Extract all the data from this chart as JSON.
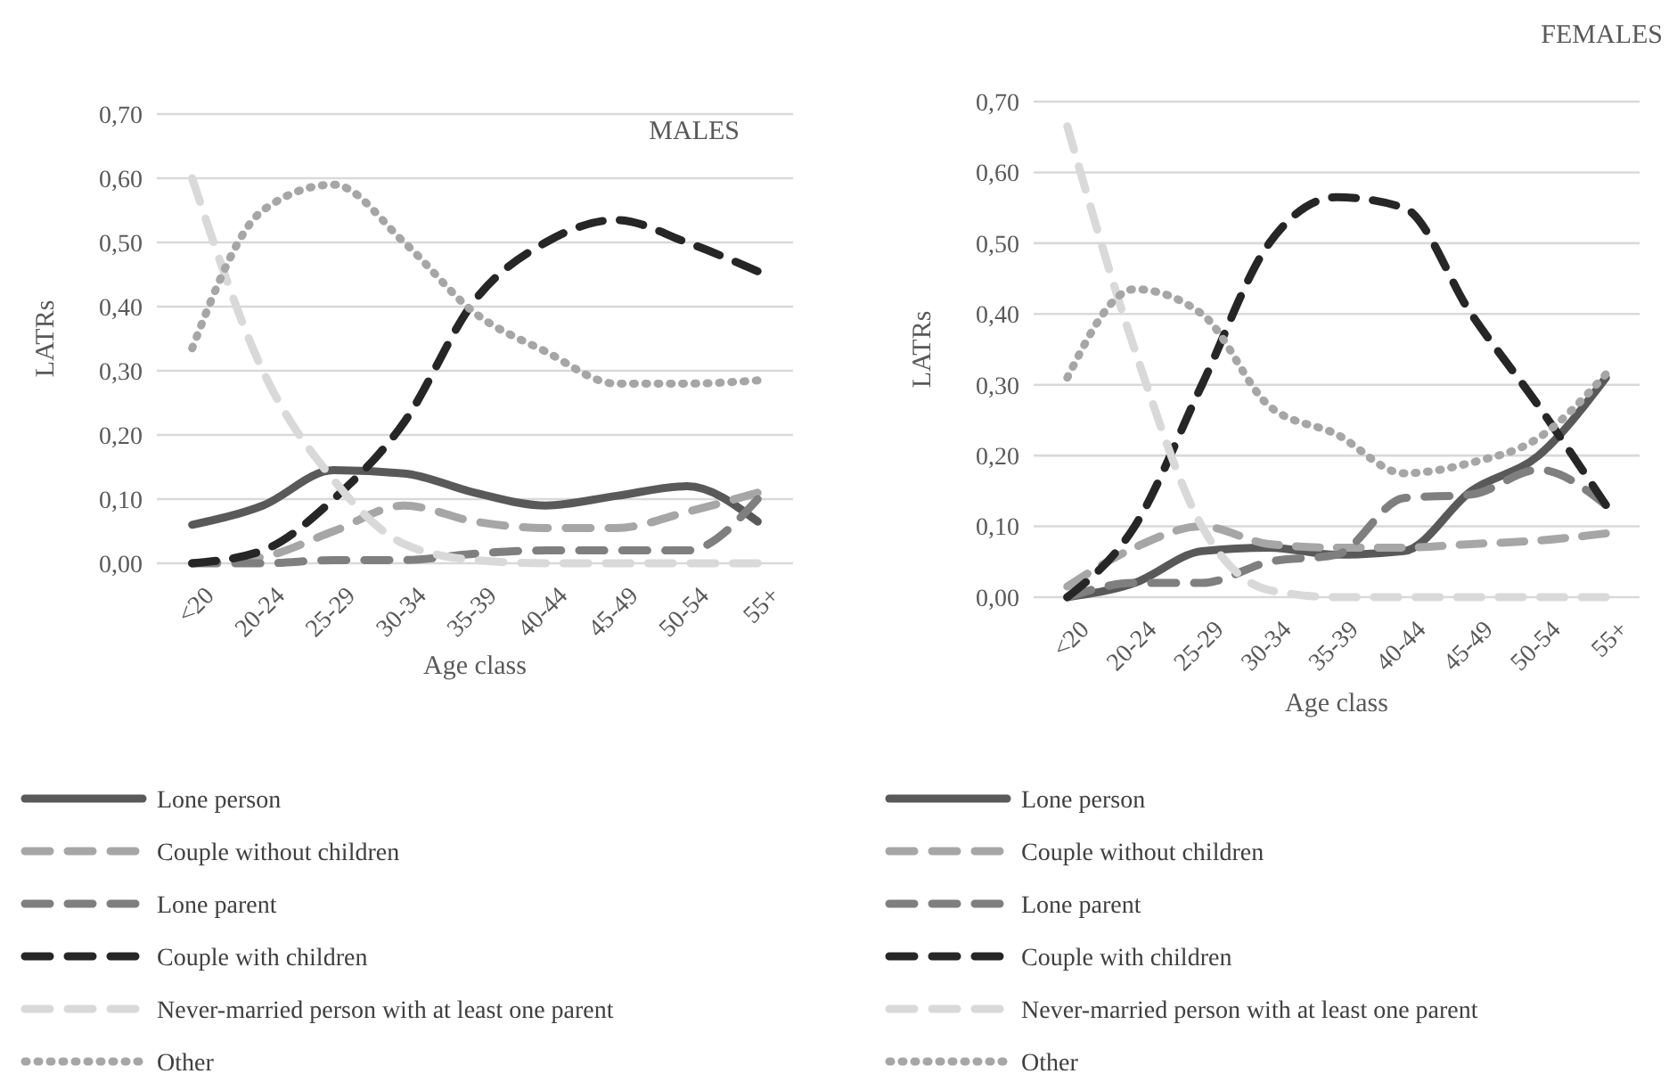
{
  "chart_data": [
    {
      "type": "line",
      "title": "MALES",
      "xlabel": "Age class",
      "ylabel": "LATRs",
      "categories": [
        "<20",
        "20-24",
        "25-29",
        "30-34",
        "35-39",
        "40-44",
        "45-49",
        "50-54",
        "55+"
      ],
      "ylim": [
        0,
        0.7
      ],
      "yticks": [
        {
          "value": 0,
          "label": "0,00"
        },
        {
          "value": 0.1,
          "label": "0,10"
        },
        {
          "value": 0.2,
          "label": "0,20"
        },
        {
          "value": 0.3,
          "label": "0,30"
        },
        {
          "value": 0.4,
          "label": "0,40"
        },
        {
          "value": 0.5,
          "label": "0,50"
        },
        {
          "value": 0.6,
          "label": "0,60"
        },
        {
          "value": 0.7,
          "label": "0,70"
        }
      ],
      "grid": "y",
      "legend": "bottom",
      "marker": "none",
      "series": [
        {
          "name": "Lone person",
          "color": "#595959",
          "line_style": "solid",
          "values": [
            0.06,
            0.09,
            0.145,
            0.14,
            0.11,
            0.09,
            0.105,
            0.12,
            0.065
          ]
        },
        {
          "name": "Couple without children",
          "color": "#a6a6a6",
          "line_style": "dashed",
          "values": [
            0.0,
            0.01,
            0.05,
            0.09,
            0.065,
            0.055,
            0.055,
            0.08,
            0.11
          ]
        },
        {
          "name": "Lone parent",
          "color": "#7f7f7f",
          "line_style": "dashed",
          "values": [
            0.0,
            0.0,
            0.005,
            0.005,
            0.015,
            0.02,
            0.02,
            0.02,
            0.1
          ]
        },
        {
          "name": "Couple with children",
          "color": "#262626",
          "line_style": "dashed",
          "values": [
            0.0,
            0.02,
            0.1,
            0.22,
            0.41,
            0.5,
            0.535,
            0.5,
            0.455
          ]
        },
        {
          "name": "Never-married person with at least one parent",
          "color": "#d9d9d9",
          "line_style": "dashed",
          "values": [
            0.6,
            0.3,
            0.13,
            0.03,
            0.005,
            0,
            0,
            0,
            0
          ]
        },
        {
          "name": "Other",
          "color": "#a6a6a6",
          "line_style": "dotted",
          "values": [
            0.335,
            0.55,
            0.59,
            0.5,
            0.39,
            0.33,
            0.28,
            0.28,
            0.285
          ]
        }
      ]
    },
    {
      "type": "line",
      "title": "FEMALES",
      "xlabel": "Age class",
      "ylabel": "LATRs",
      "categories": [
        "<20",
        "20-24",
        "25-29",
        "30-34",
        "35-39",
        "40-44",
        "45-49",
        "50-54",
        "55+"
      ],
      "ylim": [
        0,
        0.7
      ],
      "yticks": [
        {
          "value": 0,
          "label": "0,00"
        },
        {
          "value": 0.1,
          "label": "0,10"
        },
        {
          "value": 0.2,
          "label": "0,20"
        },
        {
          "value": 0.3,
          "label": "0,30"
        },
        {
          "value": 0.4,
          "label": "0,40"
        },
        {
          "value": 0.5,
          "label": "0,50"
        },
        {
          "value": 0.6,
          "label": "0,60"
        },
        {
          "value": 0.7,
          "label": "0,70"
        }
      ],
      "grid": "y",
      "legend": "bottom",
      "marker": "none",
      "series": [
        {
          "name": "Lone person",
          "color": "#595959",
          "line_style": "solid",
          "values": [
            0.0,
            0.02,
            0.065,
            0.07,
            0.06,
            0.065,
            0.15,
            0.2,
            0.31
          ]
        },
        {
          "name": "Couple without children",
          "color": "#a6a6a6",
          "line_style": "dashed",
          "values": [
            0.015,
            0.07,
            0.1,
            0.075,
            0.07,
            0.07,
            0.075,
            0.08,
            0.09
          ]
        },
        {
          "name": "Lone parent",
          "color": "#7f7f7f",
          "line_style": "dashed",
          "values": [
            0.0,
            0.02,
            0.02,
            0.05,
            0.06,
            0.14,
            0.145,
            0.18,
            0.13
          ]
        },
        {
          "name": "Couple with children",
          "color": "#262626",
          "line_style": "dashed",
          "values": [
            0.0,
            0.1,
            0.3,
            0.5,
            0.565,
            0.55,
            0.4,
            0.27,
            0.13
          ]
        },
        {
          "name": "Never-married person with at least one parent",
          "color": "#d9d9d9",
          "line_style": "dashed",
          "values": [
            0.665,
            0.35,
            0.1,
            0.01,
            0,
            0,
            0,
            0,
            0
          ]
        },
        {
          "name": "Other",
          "color": "#a6a6a6",
          "line_style": "dotted",
          "values": [
            0.31,
            0.435,
            0.4,
            0.27,
            0.23,
            0.175,
            0.19,
            0.225,
            0.315
          ]
        }
      ]
    }
  ]
}
